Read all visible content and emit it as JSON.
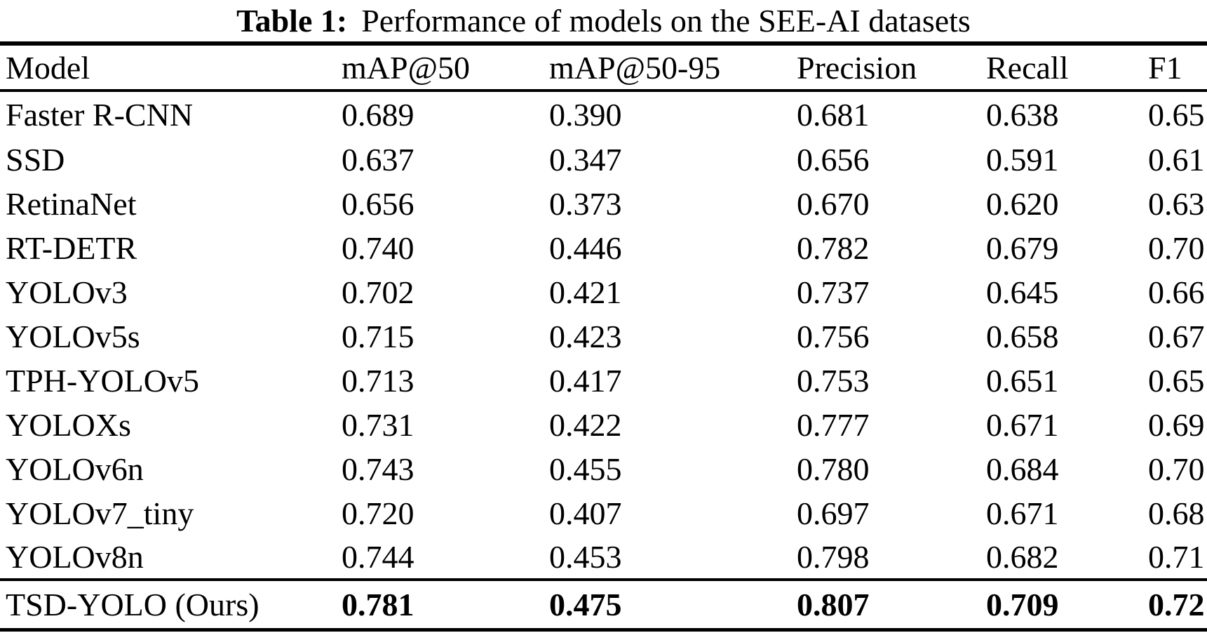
{
  "caption": {
    "label": "Table 1:",
    "text": "Performance of models on the SEE-AI datasets"
  },
  "colors": {
    "text": "#000000",
    "background": "#ffffff",
    "rule": "#000000"
  },
  "table": {
    "columns": [
      "Model",
      "mAP@50",
      "mAP@50-95",
      "Precision",
      "Recall",
      "F1"
    ],
    "rows": [
      [
        "Faster R-CNN",
        "0.689",
        "0.390",
        "0.681",
        "0.638",
        "0.65"
      ],
      [
        "SSD",
        "0.637",
        "0.347",
        "0.656",
        "0.591",
        "0.61"
      ],
      [
        "RetinaNet",
        "0.656",
        "0.373",
        "0.670",
        "0.620",
        "0.63"
      ],
      [
        "RT-DETR",
        "0.740",
        "0.446",
        "0.782",
        "0.679",
        "0.70"
      ],
      [
        "YOLOv3",
        "0.702",
        "0.421",
        "0.737",
        "0.645",
        "0.66"
      ],
      [
        "YOLOv5s",
        "0.715",
        "0.423",
        "0.756",
        "0.658",
        "0.67"
      ],
      [
        "TPH-YOLOv5",
        "0.713",
        "0.417",
        "0.753",
        "0.651",
        "0.65"
      ],
      [
        "YOLOXs",
        "0.731",
        "0.422",
        "0.777",
        "0.671",
        "0.69"
      ],
      [
        "YOLOv6n",
        "0.743",
        "0.455",
        "0.780",
        "0.684",
        "0.70"
      ],
      [
        "YOLOv7_tiny",
        "0.720",
        "0.407",
        "0.697",
        "0.671",
        "0.68"
      ],
      [
        "YOLOv8n",
        "0.744",
        "0.453",
        "0.798",
        "0.682",
        "0.71"
      ]
    ],
    "final_row": [
      "TSD-YOLO (Ours)",
      "0.781",
      "0.475",
      "0.807",
      "0.709",
      "0.72"
    ]
  }
}
